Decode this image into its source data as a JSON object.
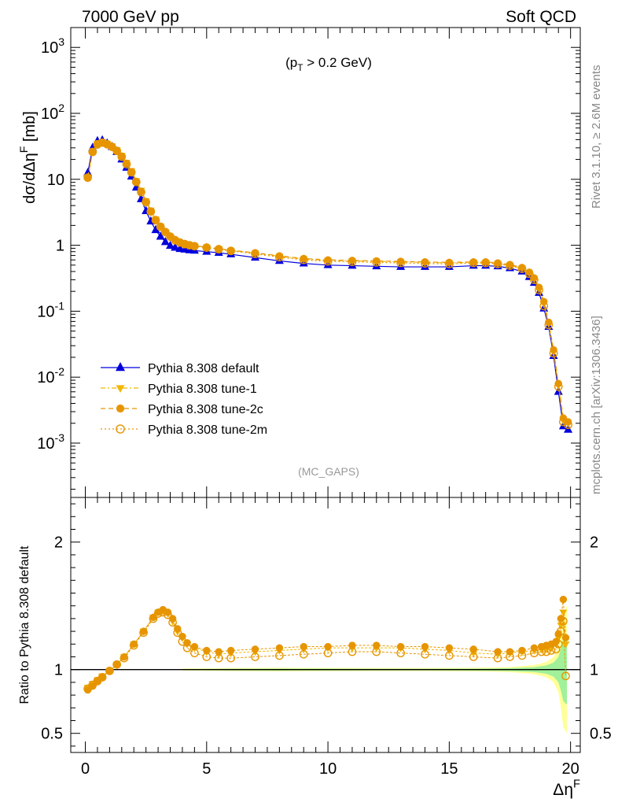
{
  "header": {
    "left": "7000 GeV pp",
    "right": "Soft QCD",
    "side_top": "Rivet 3.1.10, ≥ 2.6M events",
    "side_bottom": "mcplots.cern.ch [arXiv:1306.3436]"
  },
  "chart_data": [
    {
      "type": "line",
      "panel": "main",
      "annotation": "(p_T > 0.2 GeV)",
      "watermark": "(MC_GAPS)",
      "ylabel": "dσ/dΔη^F [mb]",
      "xlabel": "Δη^F",
      "yscale": "log",
      "xlim": [
        -0.6,
        20.4
      ],
      "ylim": [
        0.00015,
        2000
      ],
      "grid": false,
      "legend_position": "lower-left",
      "y_ticks": [
        "10^{-3}",
        "10^{-2}",
        "10^{-1}",
        "1",
        "10",
        "10^{2}",
        "10^{3}"
      ],
      "x_ticks": [
        "0",
        "5",
        "10",
        "15",
        "20"
      ],
      "x": [
        0.1,
        0.3,
        0.5,
        0.7,
        0.9,
        1.1,
        1.3,
        1.5,
        1.7,
        1.9,
        2.1,
        2.3,
        2.5,
        2.7,
        2.9,
        3.1,
        3.3,
        3.5,
        3.7,
        3.9,
        4.1,
        4.3,
        4.5,
        5.0,
        5.5,
        6.0,
        7.0,
        8.0,
        9.0,
        10.0,
        11.0,
        12.0,
        13.0,
        14.0,
        15.0,
        16.0,
        16.5,
        17.0,
        17.5,
        18.0,
        18.3,
        18.5,
        18.7,
        18.9,
        19.1,
        19.3,
        19.5,
        19.7,
        19.9
      ],
      "series": [
        {
          "name": "Pythia 8.308 default",
          "color": "#0000dd",
          "line": "solid",
          "marker": "triangle-up",
          "values": [
            12.5,
            30,
            38,
            39,
            35,
            31,
            26,
            20,
            15,
            11,
            7.5,
            5.0,
            3.3,
            2.3,
            1.7,
            1.35,
            1.12,
            0.98,
            0.92,
            0.88,
            0.86,
            0.84,
            0.83,
            0.8,
            0.77,
            0.73,
            0.65,
            0.58,
            0.53,
            0.5,
            0.49,
            0.48,
            0.47,
            0.47,
            0.47,
            0.49,
            0.49,
            0.48,
            0.45,
            0.4,
            0.33,
            0.27,
            0.19,
            0.11,
            0.058,
            0.021,
            0.006,
            0.0018,
            0.0016
          ]
        },
        {
          "name": "Pythia 8.308 tune-1",
          "color": "#f2b600",
          "line": "dash-dot",
          "marker": "triangle-down",
          "values": [
            10.8,
            27,
            35,
            37,
            35,
            32,
            28,
            23,
            18,
            13.5,
            9.5,
            6.8,
            4.7,
            3.4,
            2.5,
            1.95,
            1.6,
            1.35,
            1.2,
            1.1,
            1.04,
            1.0,
            0.97,
            0.93,
            0.88,
            0.83,
            0.76,
            0.68,
            0.62,
            0.59,
            0.58,
            0.57,
            0.56,
            0.55,
            0.54,
            0.55,
            0.55,
            0.53,
            0.5,
            0.45,
            0.38,
            0.31,
            0.22,
            0.13,
            0.065,
            0.024,
            0.0075,
            0.0022,
            0.002
          ]
        },
        {
          "name": "Pythia 8.308 tune-2c",
          "color": "#e69500",
          "line": "dashed",
          "marker": "circle",
          "values": [
            10.5,
            26,
            33,
            36,
            34,
            31,
            27,
            22.5,
            17.5,
            13,
            9.3,
            6.6,
            4.6,
            3.3,
            2.45,
            1.95,
            1.62,
            1.38,
            1.22,
            1.12,
            1.06,
            1.01,
            0.98,
            0.94,
            0.89,
            0.84,
            0.77,
            0.69,
            0.63,
            0.6,
            0.59,
            0.58,
            0.57,
            0.56,
            0.55,
            0.56,
            0.56,
            0.54,
            0.51,
            0.46,
            0.39,
            0.32,
            0.23,
            0.14,
            0.068,
            0.026,
            0.008,
            0.0024,
            0.0021
          ]
        },
        {
          "name": "Pythia 8.308 tune-2m",
          "color": "#e69500",
          "line": "dotted",
          "marker": "open-circle",
          "values": [
            10.6,
            26,
            34,
            36,
            34,
            31,
            27,
            22,
            17,
            12.8,
            9.1,
            6.4,
            4.5,
            3.25,
            2.4,
            1.9,
            1.58,
            1.35,
            1.19,
            1.1,
            1.04,
            1.0,
            0.97,
            0.92,
            0.87,
            0.82,
            0.74,
            0.66,
            0.6,
            0.57,
            0.56,
            0.55,
            0.54,
            0.53,
            0.52,
            0.54,
            0.54,
            0.52,
            0.49,
            0.44,
            0.37,
            0.3,
            0.21,
            0.12,
            0.062,
            0.023,
            0.0072,
            0.0021,
            0.0019
          ]
        }
      ]
    },
    {
      "type": "line",
      "panel": "ratio",
      "ylabel": "Ratio to Pythia 8.308 default",
      "xlabel": "Δη^F",
      "xlim": [
        -0.6,
        20.4
      ],
      "ylim": [
        0.35,
        2.35
      ],
      "reference": 1,
      "y_ticks": [
        "0.5",
        "1",
        "2"
      ],
      "x_ticks": [
        "0",
        "5",
        "10",
        "15",
        "20"
      ],
      "x": [
        0.1,
        0.3,
        0.5,
        0.7,
        1.0,
        1.3,
        1.6,
        2.0,
        2.4,
        2.8,
        3.0,
        3.2,
        3.4,
        3.6,
        3.8,
        4.0,
        4.2,
        4.5,
        5.0,
        5.5,
        6.0,
        7.0,
        8.0,
        9.0,
        10.0,
        11.0,
        12.0,
        13.0,
        14.0,
        15.0,
        16.0,
        17.0,
        17.5,
        18.0,
        18.5,
        18.8,
        19.0,
        19.2,
        19.4,
        19.5,
        19.6,
        19.7,
        19.8
      ],
      "series": [
        {
          "name": "Pythia 8.308 tune-1",
          "color": "#f2b600",
          "marker": "triangle-down",
          "values": [
            0.86,
            0.89,
            0.92,
            0.95,
            0.99,
            1.04,
            1.1,
            1.2,
            1.3,
            1.41,
            1.45,
            1.46,
            1.44,
            1.38,
            1.3,
            1.25,
            1.2,
            1.17,
            1.14,
            1.12,
            1.13,
            1.14,
            1.15,
            1.16,
            1.17,
            1.17,
            1.17,
            1.17,
            1.16,
            1.15,
            1.13,
            1.12,
            1.13,
            1.14,
            1.15,
            1.16,
            1.16,
            1.17,
            1.2,
            1.25,
            1.35,
            1.45,
            1.2
          ]
        },
        {
          "name": "Pythia 8.308 tune-2c",
          "color": "#e69500",
          "marker": "circle",
          "values": [
            0.84,
            0.87,
            0.91,
            0.94,
            0.99,
            1.04,
            1.1,
            1.2,
            1.3,
            1.41,
            1.45,
            1.47,
            1.45,
            1.4,
            1.32,
            1.26,
            1.21,
            1.18,
            1.15,
            1.14,
            1.15,
            1.16,
            1.17,
            1.18,
            1.18,
            1.19,
            1.19,
            1.18,
            1.18,
            1.17,
            1.16,
            1.14,
            1.14,
            1.15,
            1.17,
            1.18,
            1.19,
            1.2,
            1.22,
            1.28,
            1.4,
            1.55,
            1.25
          ]
        },
        {
          "name": "Pythia 8.308 tune-2m",
          "color": "#e69500",
          "marker": "open-circle",
          "values": [
            0.85,
            0.88,
            0.91,
            0.94,
            0.99,
            1.04,
            1.09,
            1.19,
            1.29,
            1.4,
            1.44,
            1.45,
            1.43,
            1.37,
            1.29,
            1.22,
            1.17,
            1.13,
            1.1,
            1.09,
            1.09,
            1.1,
            1.11,
            1.12,
            1.13,
            1.14,
            1.14,
            1.13,
            1.12,
            1.11,
            1.1,
            1.09,
            1.1,
            1.11,
            1.13,
            1.14,
            1.14,
            1.15,
            1.16,
            1.2,
            1.3,
            1.38,
            0.95
          ]
        }
      ]
    }
  ]
}
